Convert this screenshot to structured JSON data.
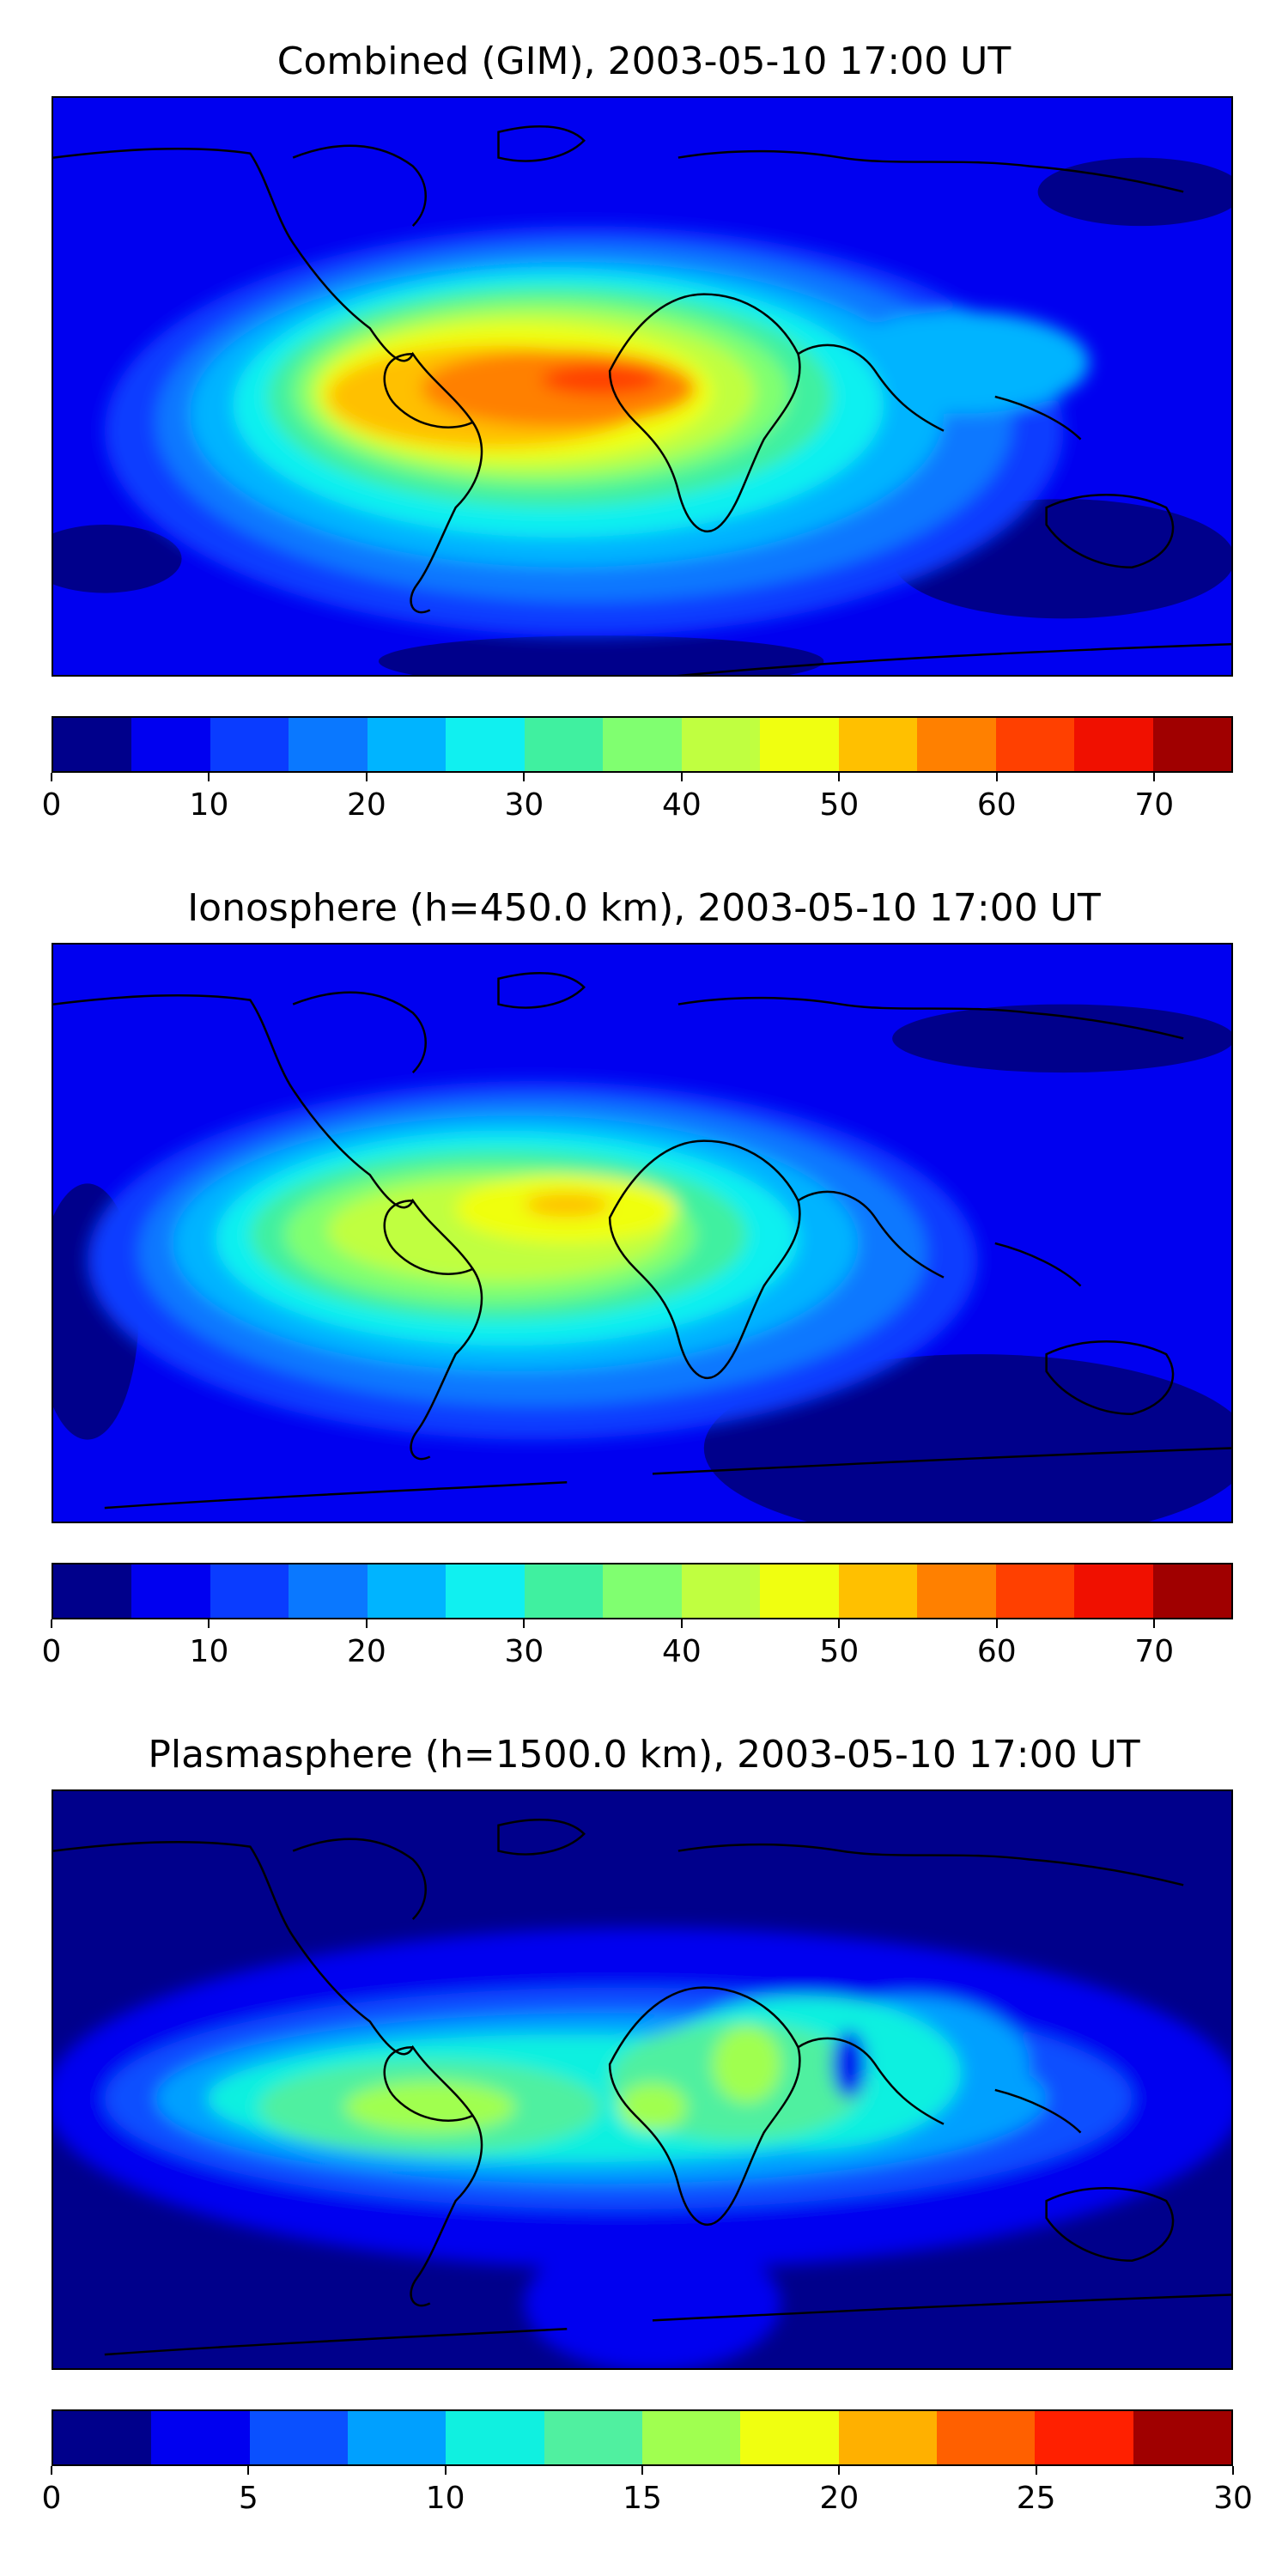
{
  "panels": [
    {
      "title": "Combined (GIM), 2003-05-10 17:00 UT",
      "colorbar": {
        "min": 0,
        "max": 75,
        "step": 5,
        "tick_labels": [
          "0",
          "10",
          "20",
          "30",
          "40",
          "50",
          "60",
          "70"
        ],
        "tick_values": [
          0,
          10,
          20,
          30,
          40,
          50,
          60,
          70
        ],
        "colors": [
          "#00008b",
          "#0000f0",
          "#0a3cff",
          "#0a78ff",
          "#00b4ff",
          "#10f0f0",
          "#40f0a0",
          "#80ff70",
          "#c0ff40",
          "#f0ff10",
          "#ffc000",
          "#ff8000",
          "#ff4000",
          "#f01000",
          "#a00000"
        ]
      }
    },
    {
      "title": "Ionosphere  (h=450.0 km), 2003-05-10 17:00 UT",
      "colorbar": {
        "min": 0,
        "max": 75,
        "step": 5,
        "tick_labels": [
          "0",
          "10",
          "20",
          "30",
          "40",
          "50",
          "60",
          "70"
        ],
        "tick_values": [
          0,
          10,
          20,
          30,
          40,
          50,
          60,
          70
        ],
        "colors": [
          "#00008b",
          "#0000f0",
          "#0a3cff",
          "#0a78ff",
          "#00b4ff",
          "#10f0f0",
          "#40f0a0",
          "#80ff70",
          "#c0ff40",
          "#f0ff10",
          "#ffc000",
          "#ff8000",
          "#ff4000",
          "#f01000",
          "#a00000"
        ]
      }
    },
    {
      "title": "Plasmasphere (h=1500.0 km), 2003-05-10 17:00 UT",
      "colorbar": {
        "min": 0,
        "max": 30,
        "step": 2.5,
        "tick_labels": [
          "0",
          "5",
          "10",
          "15",
          "20",
          "25",
          "30"
        ],
        "tick_values": [
          0,
          5,
          10,
          15,
          20,
          25,
          30
        ],
        "colors": [
          "#00008b",
          "#0000f0",
          "#0a50ff",
          "#00a0ff",
          "#10f0e0",
          "#50f0a0",
          "#a0ff50",
          "#f0ff10",
          "#ffb000",
          "#ff6000",
          "#ff2000",
          "#a00000"
        ]
      }
    }
  ],
  "colors": {
    "background": "#0000f0",
    "coastline": "#000000"
  }
}
